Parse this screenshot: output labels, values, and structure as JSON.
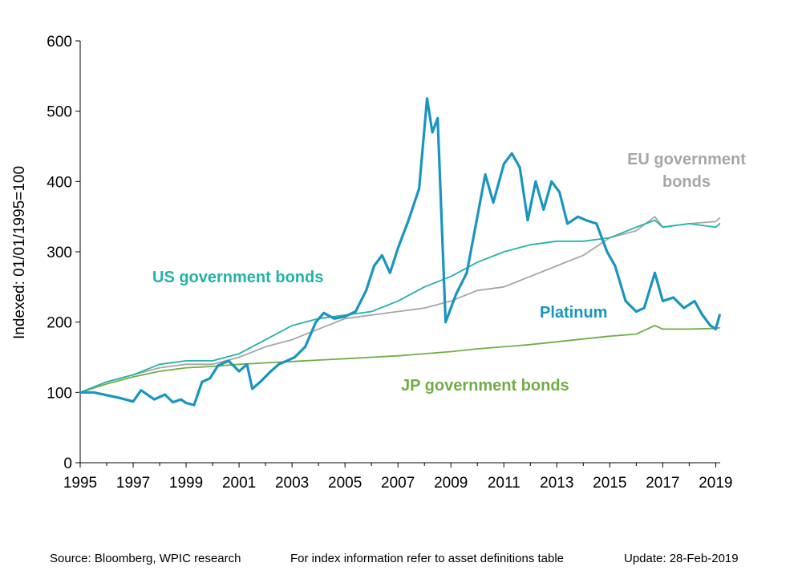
{
  "chart_data": {
    "type": "line",
    "ylabel": "Indexed: 01/01/1995=100",
    "ylim": [
      0,
      600
    ],
    "xlim": [
      1995,
      2019.17
    ],
    "yticks": [
      0,
      100,
      200,
      300,
      400,
      500,
      600
    ],
    "xticks": [
      1995,
      1997,
      1999,
      2001,
      2003,
      2005,
      2007,
      2009,
      2011,
      2013,
      2015,
      2017,
      2019
    ],
    "grid": false,
    "colors": {
      "platinum": "#1a94c0",
      "us": "#22b3a8",
      "eu": "#a6a6a6",
      "jp": "#70ad47"
    },
    "series": [
      {
        "name": "Platinum",
        "x": [
          1995,
          1995.5,
          1996,
          1996.5,
          1997,
          1997.3,
          1997.8,
          1998.2,
          1998.5,
          1998.8,
          1999,
          1999.3,
          1999.6,
          1999.9,
          2000.2,
          2000.6,
          2001,
          2001.3,
          2001.5,
          2001.8,
          2002.2,
          2002.5,
          2002.8,
          2003.1,
          2003.5,
          2003.9,
          2004.2,
          2004.6,
          2005,
          2005.4,
          2005.8,
          2006.1,
          2006.4,
          2006.7,
          2007,
          2007.4,
          2007.8,
          2008.1,
          2008.3,
          2008.5,
          2008.8,
          2009.2,
          2009.6,
          2010,
          2010.3,
          2010.6,
          2011,
          2011.3,
          2011.6,
          2011.9,
          2012.2,
          2012.5,
          2012.8,
          2013.1,
          2013.4,
          2013.8,
          2014.1,
          2014.5,
          2014.9,
          2015.2,
          2015.6,
          2016,
          2016.3,
          2016.7,
          2017,
          2017.4,
          2017.8,
          2018.2,
          2018.5,
          2018.8,
          2019,
          2019.15
        ],
        "values": [
          100,
          100,
          96,
          92,
          87,
          103,
          90,
          97,
          86,
          90,
          85,
          82,
          115,
          120,
          138,
          145,
          130,
          140,
          105,
          115,
          130,
          140,
          145,
          150,
          165,
          200,
          213,
          205,
          208,
          215,
          245,
          280,
          295,
          270,
          305,
          345,
          390,
          518,
          470,
          490,
          200,
          240,
          270,
          350,
          410,
          370,
          425,
          440,
          420,
          345,
          400,
          360,
          400,
          385,
          340,
          350,
          345,
          340,
          300,
          280,
          230,
          215,
          220,
          270,
          230,
          235,
          220,
          230,
          210,
          195,
          190,
          210
        ]
      },
      {
        "name": "US government bonds",
        "x": [
          1995,
          1996,
          1997,
          1998,
          1999,
          2000,
          2001,
          2002,
          2003,
          2004,
          2005,
          2006,
          2007,
          2008,
          2009,
          2010,
          2011,
          2012,
          2013,
          2014,
          2015,
          2016,
          2016.7,
          2017,
          2018,
          2019,
          2019.15
        ],
        "values": [
          100,
          115,
          125,
          140,
          145,
          145,
          155,
          175,
          195,
          205,
          210,
          215,
          230,
          250,
          265,
          285,
          300,
          310,
          315,
          315,
          320,
          335,
          345,
          335,
          340,
          335,
          340
        ]
      },
      {
        "name": "EU government bonds",
        "x": [
          1995,
          1996,
          1997,
          1998,
          1999,
          2000,
          2001,
          2002,
          2003,
          2004,
          2005,
          2006,
          2007,
          2008,
          2009,
          2010,
          2011,
          2012,
          2013,
          2014,
          2015,
          2016,
          2016.7,
          2017,
          2018,
          2019,
          2019.15
        ],
        "values": [
          100,
          115,
          125,
          135,
          140,
          140,
          150,
          165,
          175,
          190,
          205,
          210,
          215,
          220,
          230,
          245,
          250,
          265,
          280,
          295,
          320,
          330,
          350,
          335,
          340,
          343,
          348
        ]
      },
      {
        "name": "JP government bonds",
        "x": [
          1995,
          1996,
          1997,
          1998,
          1999,
          2000,
          2001,
          2002,
          2003,
          2004,
          2005,
          2006,
          2007,
          2008,
          2009,
          2010,
          2011,
          2012,
          2013,
          2014,
          2015,
          2016,
          2016.7,
          2017,
          2018,
          2019,
          2019.15
        ],
        "values": [
          100,
          112,
          122,
          130,
          135,
          137,
          140,
          142,
          144,
          146,
          148,
          150,
          152,
          155,
          158,
          162,
          165,
          168,
          172,
          176,
          180,
          183,
          195,
          190,
          190,
          191,
          192
        ]
      }
    ],
    "labels": {
      "platinum": "Platinum",
      "us": "US government bonds",
      "eu_line1": "EU government",
      "eu_line2": "bonds",
      "jp": "JP government bonds"
    }
  },
  "footer": {
    "source": "Source: Bloomberg, WPIC research",
    "info": "For index information refer to asset definitions table",
    "update": "Update: 28-Feb-2019"
  }
}
